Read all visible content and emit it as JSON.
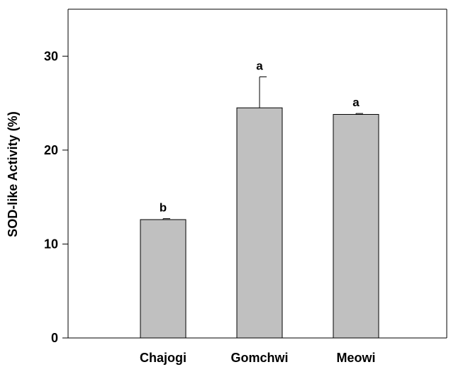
{
  "chart_data": {
    "type": "bar",
    "title": "",
    "xlabel": "",
    "ylabel": "SOD-like Activity (%)",
    "categories": [
      "Chajogi",
      "Gomchwi",
      "Meowi"
    ],
    "values": [
      12.6,
      24.5,
      23.8
    ],
    "error_bars": [
      0.1,
      3.3,
      0.1
    ],
    "annotations": [
      "b",
      "a",
      "a"
    ],
    "ylim": [
      0,
      35
    ],
    "yticks": [
      0,
      10,
      20,
      30
    ],
    "ytick_labels": [
      "0",
      "10",
      "20",
      "30"
    ],
    "grid": false,
    "legend": "none",
    "colors": {
      "bar_fill": "#c0c0c0",
      "bar_stroke": "#000000",
      "axis": "#000000"
    }
  }
}
